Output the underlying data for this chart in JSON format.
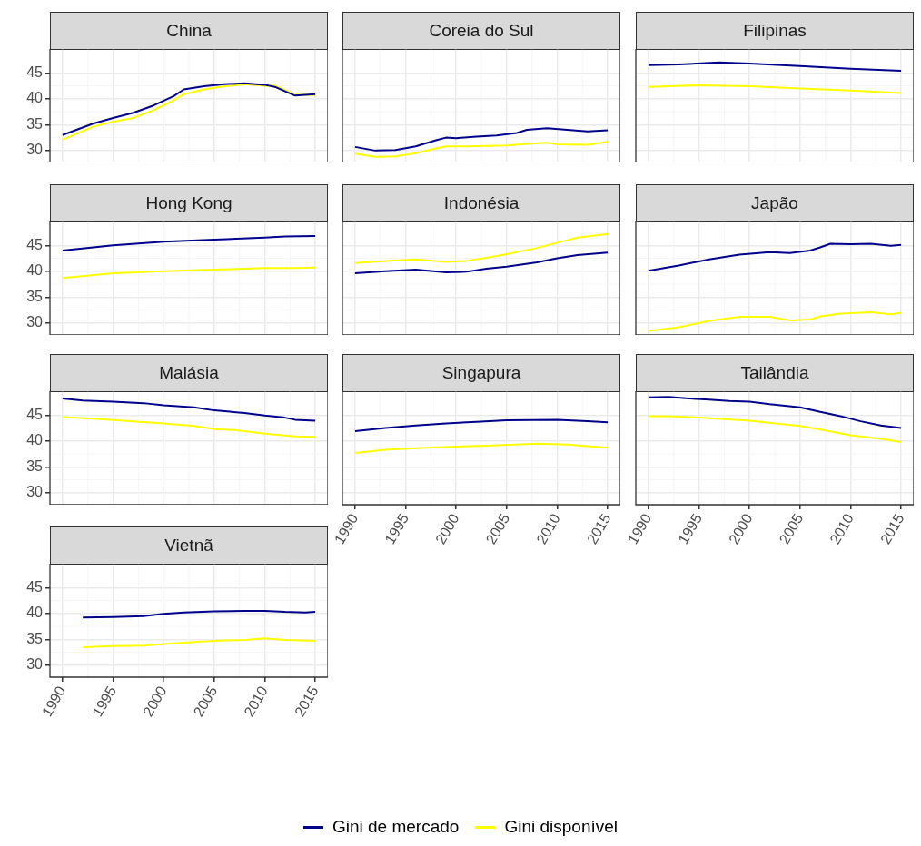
{
  "chart_data": [
    {
      "type": "line",
      "title": "China",
      "tick_labels": "y",
      "legend": "bottom",
      "grid": true,
      "xlim": [
        1988.75,
        2016.25
      ],
      "ylim": [
        27.7,
        49.6
      ],
      "xticks": [
        1990,
        1995,
        2000,
        2005,
        2010,
        2015
      ],
      "yticks": [
        30,
        35,
        40,
        45
      ],
      "series": [
        {
          "name": "Gini de mercado",
          "color": "#00008b",
          "x": [
            1990,
            1993,
            1995,
            1997,
            1999,
            2001,
            2002,
            2004,
            2006,
            2008,
            2010,
            2011,
            2013,
            2015
          ],
          "values": [
            33.0,
            35.2,
            36.3,
            37.3,
            38.7,
            40.5,
            41.8,
            42.4,
            42.8,
            43.0,
            42.7,
            42.3,
            40.6,
            40.9
          ]
        },
        {
          "name": "Gini disponível",
          "color": "#ffff00",
          "x": [
            1990,
            1993,
            1995,
            1997,
            1999,
            2001,
            2002,
            2004,
            2006,
            2008,
            2010,
            2011,
            2013,
            2015
          ],
          "values": [
            32.1,
            34.6,
            35.6,
            36.3,
            37.8,
            39.7,
            40.9,
            41.8,
            42.4,
            42.8,
            42.5,
            42.5,
            40.8,
            40.7
          ]
        }
      ]
    },
    {
      "type": "line",
      "title": "Coreia do Sul",
      "tick_labels": false,
      "grid": true,
      "xlim": [
        1988.75,
        2016.25
      ],
      "ylim": [
        27.7,
        49.6
      ],
      "xticks": [
        1990,
        1995,
        2000,
        2005,
        2010,
        2015
      ],
      "yticks": [
        30,
        35,
        40,
        45
      ],
      "series": [
        {
          "name": "Gini de mercado",
          "color": "#00008b",
          "x": [
            1990,
            1992,
            1994,
            1996,
            1998,
            1999,
            2000,
            2002,
            2004,
            2006,
            2007,
            2009,
            2011,
            2013,
            2015
          ],
          "values": [
            30.7,
            30.0,
            30.1,
            30.8,
            32.0,
            32.5,
            32.4,
            32.7,
            32.9,
            33.4,
            34.0,
            34.3,
            34.0,
            33.7,
            33.9
          ]
        },
        {
          "name": "Gini disponível",
          "color": "#ffff00",
          "x": [
            1990,
            1992,
            1994,
            1996,
            1998,
            1999,
            2001,
            2003,
            2005,
            2007,
            2009,
            2010,
            2013,
            2015
          ],
          "values": [
            29.4,
            28.8,
            28.9,
            29.5,
            30.4,
            30.8,
            30.8,
            30.9,
            31.0,
            31.3,
            31.5,
            31.2,
            31.1,
            31.7
          ]
        }
      ]
    },
    {
      "type": "line",
      "title": "Filipinas",
      "tick_labels": false,
      "grid": true,
      "xlim": [
        1988.75,
        2016.25
      ],
      "ylim": [
        27.7,
        49.6
      ],
      "xticks": [
        1990,
        1995,
        2000,
        2005,
        2010,
        2015
      ],
      "yticks": [
        30,
        35,
        40,
        45
      ],
      "series": [
        {
          "name": "Gini de mercado",
          "color": "#00008b",
          "x": [
            1990,
            1993,
            1997,
            2000,
            2005,
            2010,
            2015
          ],
          "values": [
            46.5,
            46.6,
            47.0,
            46.8,
            46.3,
            45.8,
            45.4
          ]
        },
        {
          "name": "Gini disponível",
          "color": "#ffff00",
          "x": [
            1990,
            1995,
            2000,
            2005,
            2010,
            2015
          ],
          "values": [
            42.3,
            42.6,
            42.4,
            42.0,
            41.6,
            41.1
          ]
        }
      ]
    },
    {
      "type": "line",
      "title": "Hong Kong",
      "tick_labels": "y",
      "grid": true,
      "xlim": [
        1988.75,
        2016.25
      ],
      "ylim": [
        27.7,
        49.6
      ],
      "xticks": [
        1990,
        1995,
        2000,
        2005,
        2010,
        2015
      ],
      "yticks": [
        30,
        35,
        40,
        45
      ],
      "series": [
        {
          "name": "Gini de mercado",
          "color": "#00008b",
          "x": [
            1990,
            1995,
            2000,
            2005,
            2010,
            2012,
            2015
          ],
          "values": [
            44.0,
            45.0,
            45.7,
            46.1,
            46.5,
            46.7,
            46.8
          ]
        },
        {
          "name": "Gini disponível",
          "color": "#ffff00",
          "x": [
            1990,
            1995,
            2000,
            2005,
            2010,
            2013,
            2015
          ],
          "values": [
            38.7,
            39.6,
            40.0,
            40.3,
            40.6,
            40.6,
            40.7
          ]
        }
      ]
    },
    {
      "type": "line",
      "title": "Indonésia",
      "tick_labels": false,
      "grid": true,
      "xlim": [
        1988.75,
        2016.25
      ],
      "ylim": [
        27.7,
        49.6
      ],
      "xticks": [
        1990,
        1995,
        2000,
        2005,
        2010,
        2015
      ],
      "yticks": [
        30,
        35,
        40,
        45
      ],
      "series": [
        {
          "name": "Gini de mercado",
          "color": "#00008b",
          "x": [
            1990,
            1993,
            1996,
            1999,
            2001,
            2003,
            2005,
            2008,
            2010,
            2012,
            2015
          ],
          "values": [
            39.6,
            40.0,
            40.3,
            39.8,
            39.9,
            40.5,
            40.9,
            41.7,
            42.5,
            43.1,
            43.6
          ]
        },
        {
          "name": "Gini disponível",
          "color": "#ffff00",
          "x": [
            1990,
            1993,
            1996,
            1999,
            2001,
            2003,
            2005,
            2008,
            2010,
            2012,
            2015
          ],
          "values": [
            41.6,
            42.0,
            42.3,
            41.8,
            42.0,
            42.6,
            43.3,
            44.5,
            45.5,
            46.5,
            47.2
          ]
        }
      ]
    },
    {
      "type": "line",
      "title": "Japão",
      "tick_labels": false,
      "grid": true,
      "xlim": [
        1988.75,
        2016.25
      ],
      "ylim": [
        27.7,
        49.6
      ],
      "xticks": [
        1990,
        1995,
        2000,
        2005,
        2010,
        2015
      ],
      "yticks": [
        30,
        35,
        40,
        45
      ],
      "series": [
        {
          "name": "Gini de mercado",
          "color": "#00008b",
          "x": [
            1990,
            1993,
            1996,
            1999,
            2002,
            2004,
            2006,
            2007,
            2008,
            2010,
            2012,
            2014,
            2015
          ],
          "values": [
            40.1,
            41.1,
            42.3,
            43.2,
            43.7,
            43.5,
            44.0,
            44.6,
            45.3,
            45.2,
            45.3,
            44.9,
            45.1
          ]
        },
        {
          "name": "Gini disponível",
          "color": "#ffff00",
          "x": [
            1990,
            1993,
            1996,
            1999,
            2002,
            2004,
            2006,
            2007,
            2009,
            2012,
            2014,
            2015
          ],
          "values": [
            28.5,
            29.2,
            30.4,
            31.2,
            31.2,
            30.5,
            30.7,
            31.3,
            31.8,
            32.1,
            31.7,
            32.0
          ]
        }
      ]
    },
    {
      "type": "line",
      "title": "Malásia",
      "tick_labels": "y",
      "grid": true,
      "xlim": [
        1988.75,
        2016.25
      ],
      "ylim": [
        27.7,
        49.6
      ],
      "xticks": [
        1990,
        1995,
        2000,
        2005,
        2010,
        2015
      ],
      "yticks": [
        30,
        35,
        40,
        45
      ],
      "series": [
        {
          "name": "Gini de mercado",
          "color": "#00008b",
          "x": [
            1990,
            1992,
            1995,
            1998,
            2000,
            2003,
            2005,
            2008,
            2010,
            2012,
            2013,
            2015
          ],
          "values": [
            48.2,
            47.8,
            47.6,
            47.3,
            46.9,
            46.5,
            45.9,
            45.4,
            44.9,
            44.5,
            44.1,
            43.9
          ]
        },
        {
          "name": "Gini disponível",
          "color": "#ffff00",
          "x": [
            1990,
            1993,
            1996,
            2000,
            2003,
            2005,
            2007,
            2010,
            2013,
            2015
          ],
          "values": [
            44.6,
            44.3,
            43.9,
            43.4,
            42.9,
            42.3,
            42.1,
            41.4,
            40.9,
            40.8
          ]
        }
      ]
    },
    {
      "type": "line",
      "title": "Singapura",
      "tick_labels": "x",
      "grid": true,
      "xlim": [
        1988.75,
        2016.25
      ],
      "ylim": [
        27.7,
        49.6
      ],
      "xticks": [
        1990,
        1995,
        2000,
        2005,
        2010,
        2015
      ],
      "yticks": [
        30,
        35,
        40,
        45
      ],
      "series": [
        {
          "name": "Gini de mercado",
          "color": "#00008b",
          "x": [
            1990,
            1993,
            1996,
            1999,
            2002,
            2005,
            2010,
            2013,
            2015
          ],
          "values": [
            41.9,
            42.5,
            43.0,
            43.4,
            43.7,
            44.0,
            44.1,
            43.8,
            43.6
          ]
        },
        {
          "name": "Gini disponível",
          "color": "#ffff00",
          "x": [
            1990,
            1993,
            1996,
            2000,
            2003,
            2008,
            2011,
            2013,
            2015
          ],
          "values": [
            37.7,
            38.3,
            38.6,
            38.9,
            39.1,
            39.5,
            39.3,
            39.0,
            38.7
          ]
        }
      ]
    },
    {
      "type": "line",
      "title": "Tailândia",
      "tick_labels": "x",
      "grid": true,
      "xlim": [
        1988.75,
        2016.25
      ],
      "ylim": [
        27.7,
        49.6
      ],
      "xticks": [
        1990,
        1995,
        2000,
        2005,
        2010,
        2015
      ],
      "yticks": [
        30,
        35,
        40,
        45
      ],
      "series": [
        {
          "name": "Gini de mercado",
          "color": "#00008b",
          "x": [
            1990,
            1992,
            1994,
            1996,
            1998,
            2000,
            2002,
            2005,
            2007,
            2009,
            2011,
            2013,
            2015
          ],
          "values": [
            48.4,
            48.5,
            48.2,
            48.0,
            47.7,
            47.6,
            47.1,
            46.5,
            45.6,
            44.8,
            43.8,
            43.0,
            42.5
          ]
        },
        {
          "name": "Gini disponível",
          "color": "#ffff00",
          "x": [
            1990,
            1992,
            1995,
            2000,
            2005,
            2007,
            2010,
            2013,
            2015
          ],
          "values": [
            44.8,
            44.8,
            44.5,
            43.9,
            42.9,
            42.2,
            41.1,
            40.4,
            39.8
          ]
        }
      ]
    },
    {
      "type": "line",
      "title": "Vietnã",
      "grid": true,
      "xlim": [
        1988.75,
        2016.25
      ],
      "ylim": [
        27.7,
        49.6
      ],
      "xticks": [
        1990,
        1995,
        2000,
        2005,
        2010,
        2015
      ],
      "yticks": [
        30,
        35,
        40,
        45
      ],
      "series": [
        {
          "name": "Gini de mercado",
          "color": "#00008b",
          "x": [
            1992,
            1995,
            1998,
            2000,
            2002,
            2005,
            2008,
            2010,
            2012,
            2014,
            2015
          ],
          "values": [
            39.2,
            39.3,
            39.5,
            39.9,
            40.2,
            40.4,
            40.5,
            40.5,
            40.3,
            40.2,
            40.3
          ]
        },
        {
          "name": "Gini disponível",
          "color": "#ffff00",
          "x": [
            1992,
            1995,
            1998,
            2000,
            2003,
            2005,
            2008,
            2010,
            2012,
            2015
          ],
          "values": [
            33.5,
            33.7,
            33.8,
            34.1,
            34.5,
            34.7,
            34.9,
            35.2,
            34.9,
            34.7
          ]
        }
      ]
    }
  ]
}
